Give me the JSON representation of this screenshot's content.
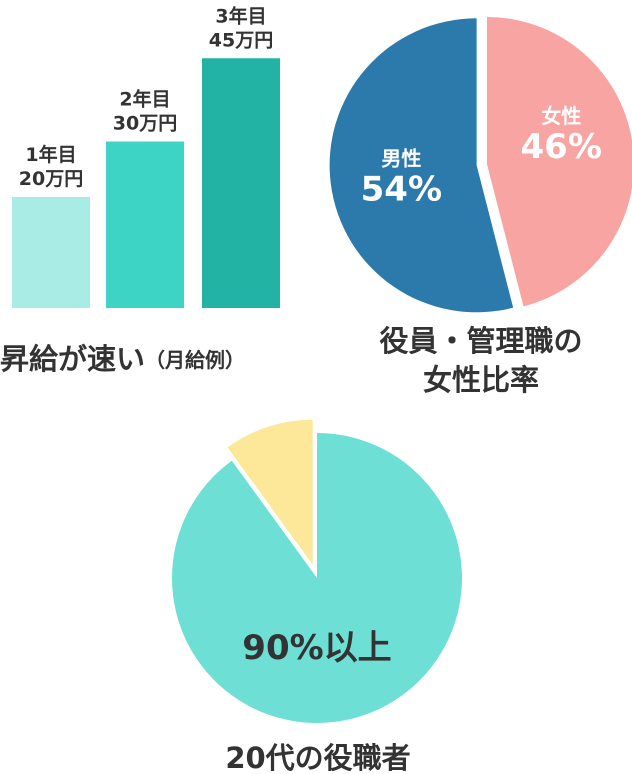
{
  "chart_data": [
    {
      "type": "bar",
      "title": "昇給が速い",
      "title_suffix": "（月給例）",
      "categories": [
        "1年目",
        "2年目",
        "3年目"
      ],
      "value_labels": [
        "20万円",
        "30万円",
        "45万円"
      ],
      "values": [
        20,
        30,
        45
      ],
      "unit": "万円",
      "colors": [
        "#a8ece5",
        "#3dd3c5",
        "#22b3a5"
      ]
    },
    {
      "type": "pie",
      "title_lines": [
        "役員・管理職の",
        "女性比率"
      ],
      "slices": [
        {
          "label": "男性",
          "display": "54%",
          "value": 54,
          "color": "#2c7aac"
        },
        {
          "label": "女性",
          "display": "46%",
          "value": 46,
          "color": "#f8a4a2"
        }
      ]
    },
    {
      "type": "pie",
      "title": "20代の役職者",
      "slices": [
        {
          "label": "90%以上",
          "value": 90,
          "color": "#6ddfd4"
        },
        {
          "label": "",
          "value": 10,
          "color": "#fde89a"
        }
      ]
    }
  ]
}
